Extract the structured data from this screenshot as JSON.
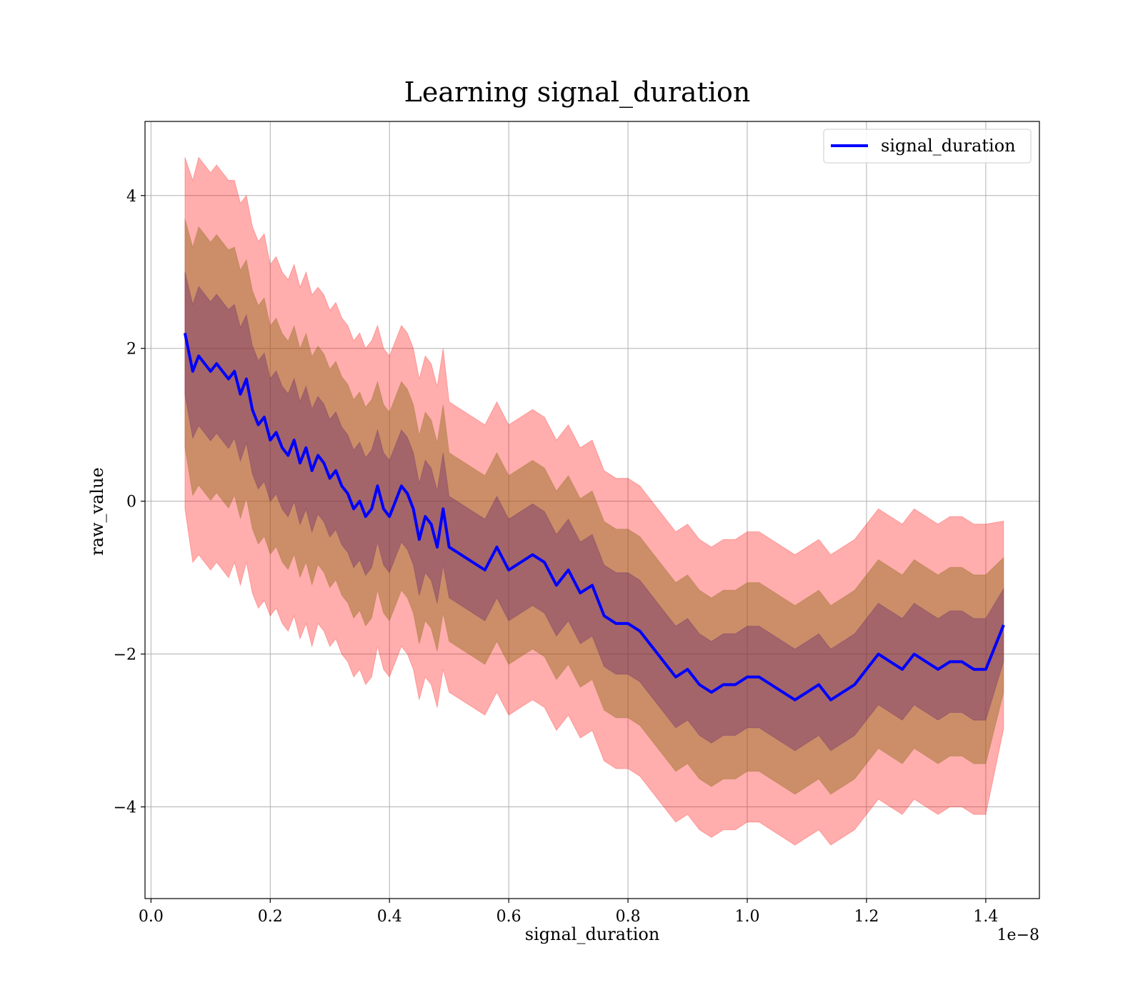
{
  "chart_data": {
    "type": "line",
    "title": "Learning signal_duration",
    "xlabel": "signal_duration",
    "ylabel": "raw_value",
    "x_offset_text": "1e−8",
    "xlim": [
      -0.01,
      1.49
    ],
    "ylim": [
      -5.2,
      4.97
    ],
    "x_ticks": [
      0.0,
      0.2,
      0.4,
      0.6,
      0.8,
      1.0,
      1.2,
      1.4
    ],
    "x_tick_labels": [
      "0.0",
      "0.2",
      "0.4",
      "0.6",
      "0.8",
      "1.0",
      "1.2",
      "1.4"
    ],
    "y_ticks": [
      -4,
      -2,
      0,
      2,
      4
    ],
    "y_tick_labels": [
      "−4",
      "−2",
      "0",
      "2",
      "4"
    ],
    "grid": true,
    "legend_position": "top-right",
    "series": [
      {
        "name": "signal_duration",
        "color": "#0000ff",
        "x": [
          0.057,
          0.07,
          0.08,
          0.09,
          0.1,
          0.11,
          0.12,
          0.13,
          0.14,
          0.15,
          0.16,
          0.17,
          0.18,
          0.19,
          0.2,
          0.21,
          0.22,
          0.23,
          0.24,
          0.25,
          0.26,
          0.27,
          0.28,
          0.29,
          0.3,
          0.31,
          0.32,
          0.33,
          0.34,
          0.35,
          0.36,
          0.37,
          0.38,
          0.39,
          0.4,
          0.41,
          0.42,
          0.43,
          0.44,
          0.45,
          0.46,
          0.47,
          0.48,
          0.49,
          0.5,
          0.52,
          0.54,
          0.56,
          0.58,
          0.6,
          0.62,
          0.64,
          0.66,
          0.68,
          0.7,
          0.72,
          0.74,
          0.76,
          0.78,
          0.8,
          0.82,
          0.84,
          0.86,
          0.88,
          0.9,
          0.92,
          0.94,
          0.96,
          0.98,
          1.0,
          1.02,
          1.04,
          1.06,
          1.08,
          1.1,
          1.12,
          1.14,
          1.16,
          1.18,
          1.2,
          1.22,
          1.24,
          1.26,
          1.28,
          1.3,
          1.32,
          1.34,
          1.36,
          1.38,
          1.4,
          1.43
        ],
        "values": [
          2.2,
          1.7,
          1.9,
          1.8,
          1.7,
          1.8,
          1.7,
          1.6,
          1.7,
          1.4,
          1.6,
          1.2,
          1.0,
          1.1,
          0.8,
          0.9,
          0.7,
          0.6,
          0.8,
          0.5,
          0.7,
          0.4,
          0.6,
          0.5,
          0.3,
          0.4,
          0.2,
          0.1,
          -0.1,
          0.0,
          -0.2,
          -0.1,
          0.2,
          -0.1,
          -0.2,
          0.0,
          0.2,
          0.1,
          -0.1,
          -0.5,
          -0.2,
          -0.3,
          -0.6,
          -0.1,
          -0.6,
          -0.7,
          -0.8,
          -0.9,
          -0.6,
          -0.9,
          -0.8,
          -0.7,
          -0.8,
          -1.1,
          -0.9,
          -1.2,
          -1.1,
          -1.5,
          -1.6,
          -1.6,
          -1.7,
          -1.9,
          -2.1,
          -2.3,
          -2.2,
          -2.4,
          -2.5,
          -2.4,
          -2.4,
          -2.3,
          -2.3,
          -2.4,
          -2.5,
          -2.6,
          -2.5,
          -2.4,
          -2.6,
          -2.5,
          -2.4,
          -2.2,
          -2.0,
          -2.1,
          -2.2,
          -2.0,
          -2.1,
          -2.2,
          -2.1,
          -2.1,
          -2.2,
          -2.2,
          -1.62
        ],
        "sigma": [
          1.15,
          1.25,
          1.3,
          1.3,
          1.3,
          1.3,
          1.3,
          1.3,
          1.25,
          1.25,
          1.2,
          1.2,
          1.2,
          1.2,
          1.15,
          1.15,
          1.15,
          1.15,
          1.15,
          1.15,
          1.15,
          1.15,
          1.1,
          1.1,
          1.1,
          1.1,
          1.1,
          1.1,
          1.1,
          1.1,
          1.1,
          1.1,
          1.05,
          1.05,
          1.05,
          1.05,
          1.05,
          1.05,
          1.05,
          1.05,
          1.05,
          1.05,
          1.05,
          1.05,
          0.95,
          0.95,
          0.95,
          0.95,
          0.95,
          0.95,
          0.95,
          0.95,
          0.95,
          0.95,
          0.95,
          0.95,
          0.95,
          0.95,
          0.95,
          0.95,
          0.95,
          0.95,
          0.95,
          0.95,
          0.95,
          0.95,
          0.95,
          0.95,
          0.95,
          0.95,
          0.95,
          0.95,
          0.95,
          0.95,
          0.95,
          0.95,
          0.95,
          0.95,
          0.95,
          0.95,
          0.95,
          0.95,
          0.95,
          0.95,
          0.95,
          0.95,
          0.95,
          0.95,
          0.95,
          0.95,
          0.68
        ]
      }
    ],
    "bands": [
      {
        "k": 2,
        "color": "#ff0000",
        "opacity": 0.32
      },
      {
        "k": 1.3,
        "color": "#8b6914",
        "opacity": 0.45
      },
      {
        "k": 0.7,
        "color": "#5a1a6e",
        "opacity": 0.35
      }
    ]
  }
}
